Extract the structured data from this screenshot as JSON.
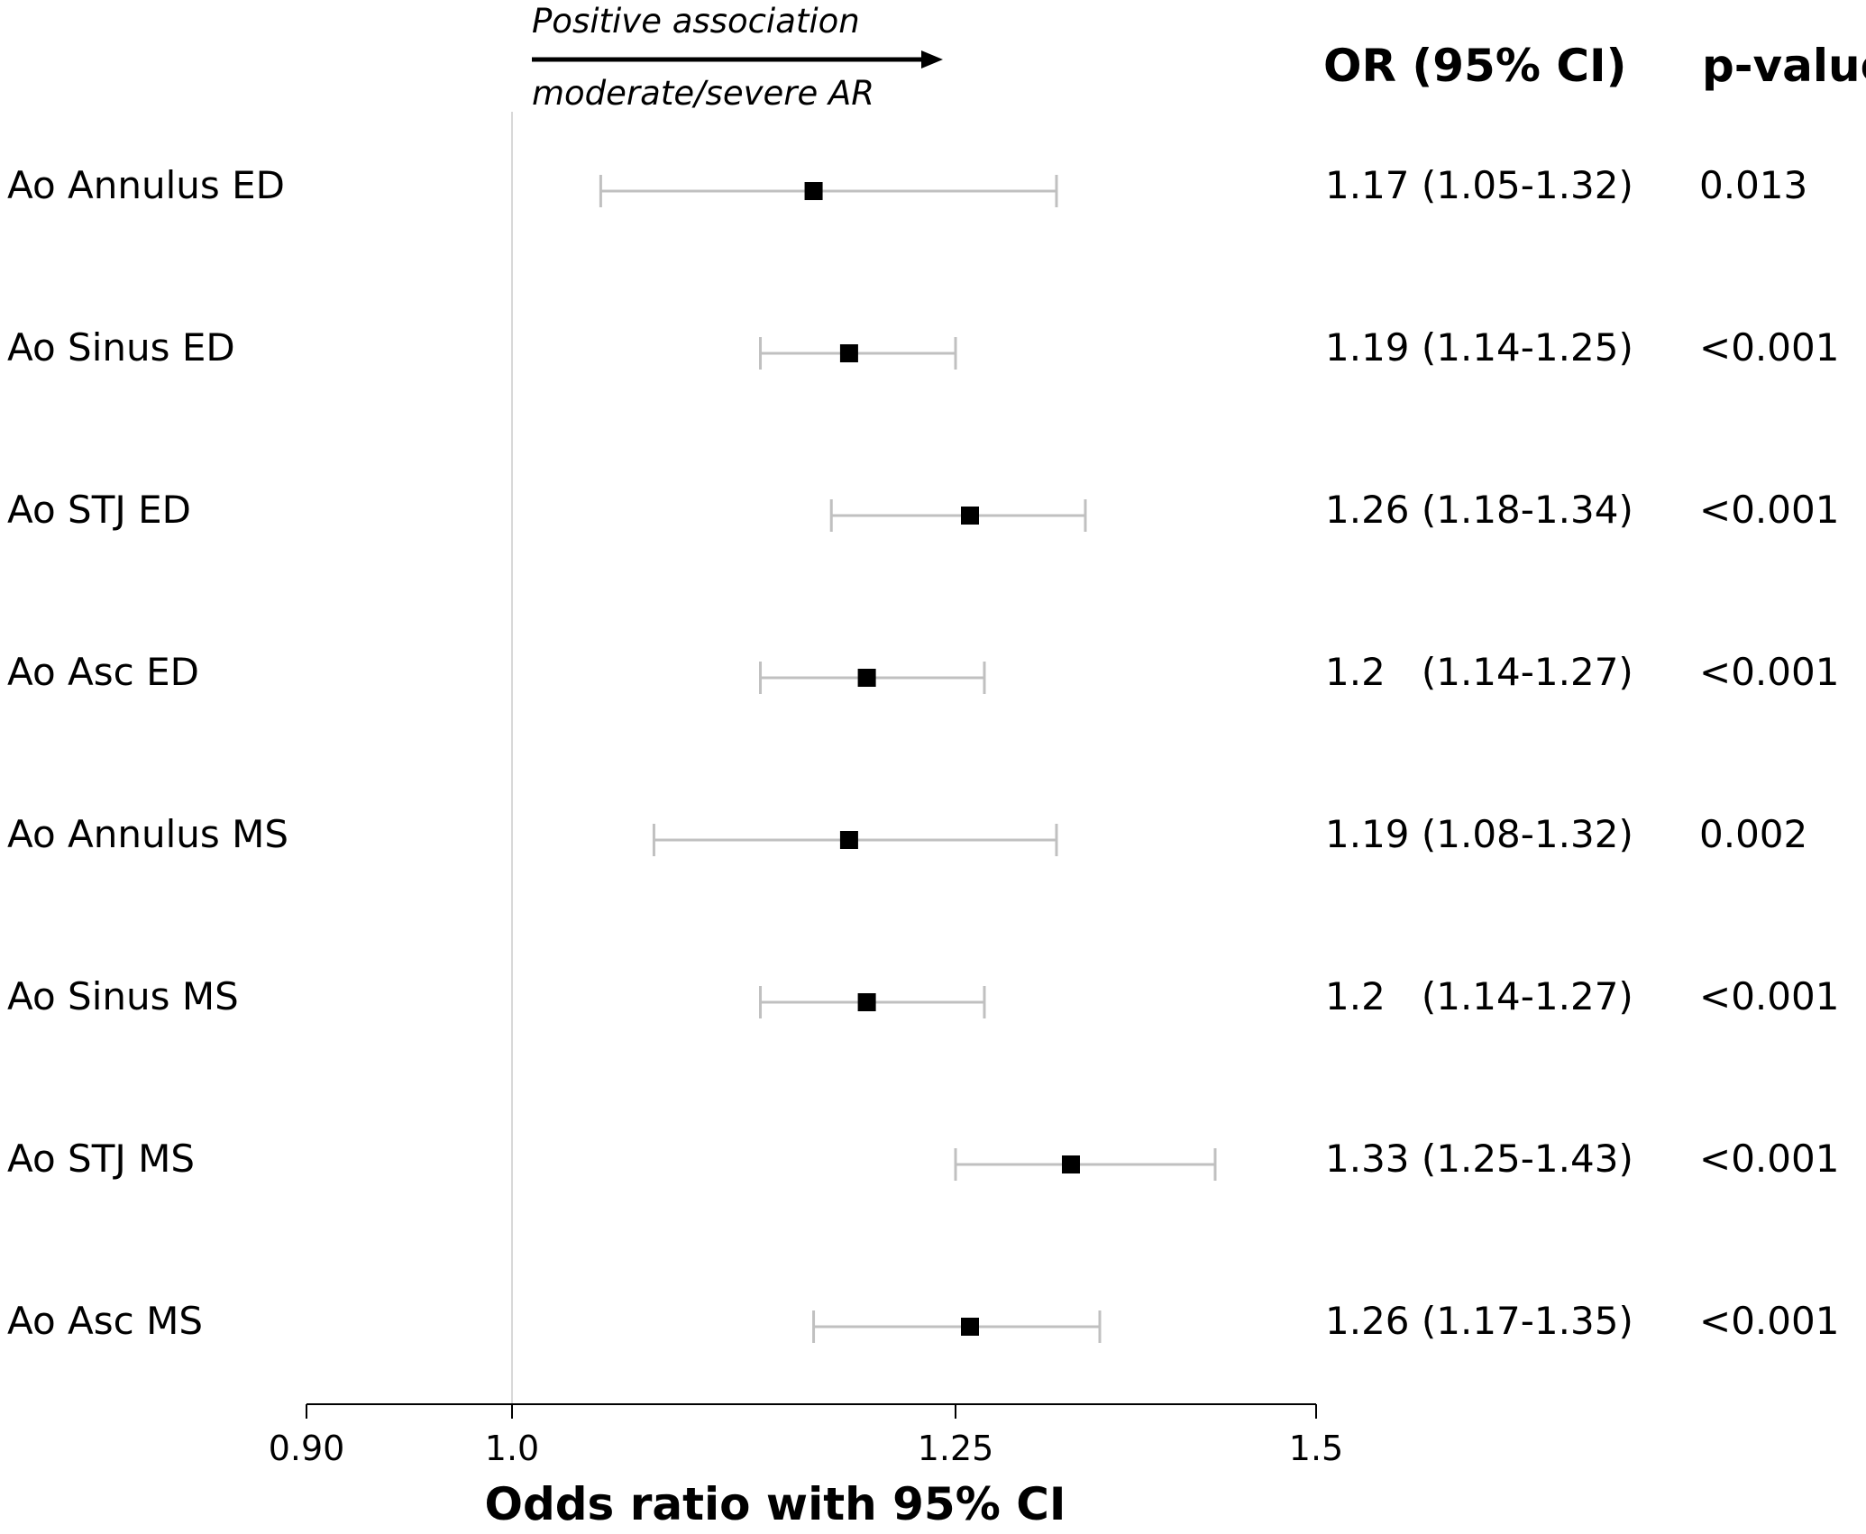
{
  "chart_data": {
    "type": "forest",
    "xlabel": "Odds ratio with 95% CI",
    "xlim": [
      0.9,
      1.5
    ],
    "xticks": [
      {
        "value": 0.9,
        "label": "0.90"
      },
      {
        "value": 1.0,
        "label": "1.0"
      },
      {
        "value": 1.25,
        "label": "1.25"
      },
      {
        "value": 1.5,
        "label": "1.5"
      }
    ],
    "reference_line": 1.0,
    "annotation_top": "Positive association",
    "annotation_bottom": "moderate/severe AR",
    "column_headers": {
      "or": "OR (95% CI)",
      "p": "p-value"
    },
    "rows": [
      {
        "label": "Ao Annulus ED",
        "or": 1.17,
        "lo": 1.05,
        "hi": 1.32,
        "or_text": "1.17 (1.05-1.32)",
        "p": "0.013"
      },
      {
        "label": "Ao Sinus ED",
        "or": 1.19,
        "lo": 1.14,
        "hi": 1.25,
        "or_text": "1.19 (1.14-1.25)",
        "p": "<0.001"
      },
      {
        "label": "Ao STJ ED",
        "or": 1.26,
        "lo": 1.18,
        "hi": 1.34,
        "or_text": "1.26 (1.18-1.34)",
        "p": "<0.001"
      },
      {
        "label": "Ao Asc ED",
        "or": 1.2,
        "lo": 1.14,
        "hi": 1.27,
        "or_text": "1.2   (1.14-1.27)",
        "p": "<0.001"
      },
      {
        "label": "Ao Annulus MS",
        "or": 1.19,
        "lo": 1.08,
        "hi": 1.32,
        "or_text": "1.19 (1.08-1.32)",
        "p": "0.002"
      },
      {
        "label": "Ao Sinus MS",
        "or": 1.2,
        "lo": 1.14,
        "hi": 1.27,
        "or_text": "1.2   (1.14-1.27)",
        "p": "<0.001"
      },
      {
        "label": "Ao STJ MS",
        "or": 1.33,
        "lo": 1.25,
        "hi": 1.43,
        "or_text": "1.33 (1.25-1.43)",
        "p": "<0.001"
      },
      {
        "label": "Ao Asc MS",
        "or": 1.26,
        "lo": 1.17,
        "hi": 1.35,
        "or_text": "1.26 (1.17-1.35)",
        "p": "<0.001"
      }
    ],
    "colors": {
      "ci_line": "#c0c0c0",
      "marker": "#000000",
      "reference": "#d8d8d8",
      "axis": "#000000"
    }
  }
}
